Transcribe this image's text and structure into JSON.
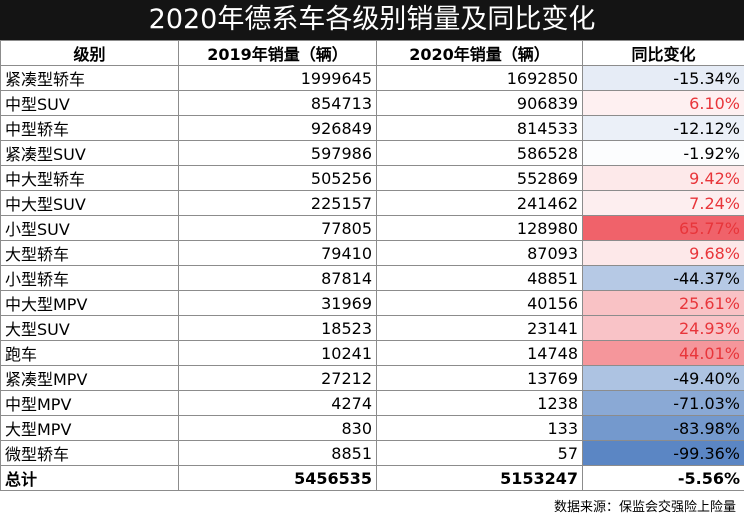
{
  "title": "2020年德系车各级别销量及同比变化",
  "headers": {
    "category": "级别",
    "y2019": "2019年销量（辆）",
    "y2020": "2020年销量（辆）",
    "change": "同比变化"
  },
  "rows": [
    {
      "name": "紧凑型轿车",
      "v2019": "1999645",
      "v2020": "1692850",
      "change": "-15.34%",
      "pct": -15.34
    },
    {
      "name": "中型SUV",
      "v2019": "854713",
      "v2020": "906839",
      "change": "6.10%",
      "pct": 6.1
    },
    {
      "name": "中型轿车",
      "v2019": "926849",
      "v2020": "814533",
      "change": "-12.12%",
      "pct": -12.12
    },
    {
      "name": "紧凑型SUV",
      "v2019": "597986",
      "v2020": "586528",
      "change": "-1.92%",
      "pct": -1.92
    },
    {
      "name": "中大型轿车",
      "v2019": "505256",
      "v2020": "552869",
      "change": "9.42%",
      "pct": 9.42
    },
    {
      "name": "中大型SUV",
      "v2019": "225157",
      "v2020": "241462",
      "change": "7.24%",
      "pct": 7.24
    },
    {
      "name": "小型SUV",
      "v2019": "77805",
      "v2020": "128980",
      "change": "65.77%",
      "pct": 65.77
    },
    {
      "name": "大型轿车",
      "v2019": "79410",
      "v2020": "87093",
      "change": "9.68%",
      "pct": 9.68
    },
    {
      "name": "小型轿车",
      "v2019": "87814",
      "v2020": "48851",
      "change": "-44.37%",
      "pct": -44.37
    },
    {
      "name": "中大型MPV",
      "v2019": "31969",
      "v2020": "40156",
      "change": "25.61%",
      "pct": 25.61
    },
    {
      "name": "大型SUV",
      "v2019": "18523",
      "v2020": "23141",
      "change": "24.93%",
      "pct": 24.93
    },
    {
      "name": "跑车",
      "v2019": "10241",
      "v2020": "14748",
      "change": "44.01%",
      "pct": 44.01
    },
    {
      "name": "紧凑型MPV",
      "v2019": "27212",
      "v2020": "13769",
      "change": "-49.40%",
      "pct": -49.4
    },
    {
      "name": "中型MPV",
      "v2019": "4274",
      "v2020": "1238",
      "change": "-71.03%",
      "pct": -71.03
    },
    {
      "name": "大型MPV",
      "v2019": "830",
      "v2020": "133",
      "change": "-83.98%",
      "pct": -83.98
    },
    {
      "name": "微型轿车",
      "v2019": "8851",
      "v2020": "57",
      "change": "-99.36%",
      "pct": -99.36
    }
  ],
  "total": {
    "name": "总计",
    "v2019": "5456535",
    "v2020": "5153247",
    "change": "-5.56%"
  },
  "source": "数据来源：保监会交强险上险量",
  "colors": {
    "positive_text": "#e8353a",
    "negative_text": "#000000",
    "positive_max_fill": "#f0626a",
    "negative_max_fill": "#5b86c4",
    "title_bg": "#141414"
  }
}
